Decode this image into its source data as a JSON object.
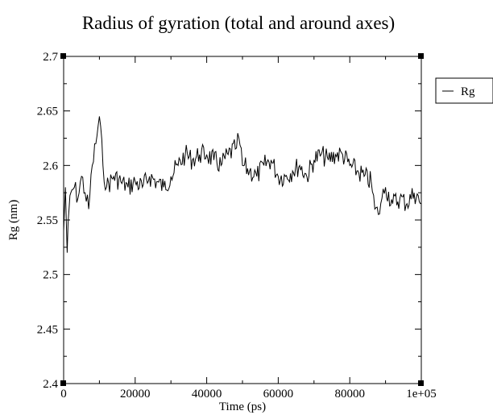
{
  "chart_data": {
    "type": "line",
    "title": "Radius of gyration (total and around axes)",
    "xlabel": "Time (ps)",
    "ylabel": "Rg (nm)",
    "xlim": [
      0,
      100000
    ],
    "ylim": [
      2.4,
      2.7
    ],
    "x_ticks": [
      {
        "value": 0,
        "label": "0"
      },
      {
        "value": 20000,
        "label": "20000"
      },
      {
        "value": 40000,
        "label": "40000"
      },
      {
        "value": 60000,
        "label": "60000"
      },
      {
        "value": 80000,
        "label": "80000"
      },
      {
        "value": 100000,
        "label": "1e+05"
      }
    ],
    "y_ticks": [
      {
        "value": 2.4,
        "label": "2.4"
      },
      {
        "value": 2.45,
        "label": "2.45"
      },
      {
        "value": 2.5,
        "label": "2.5"
      },
      {
        "value": 2.55,
        "label": "2.55"
      },
      {
        "value": 2.6,
        "label": "2.6"
      },
      {
        "value": 2.65,
        "label": "2.65"
      },
      {
        "value": 2.7,
        "label": "2.7"
      }
    ],
    "grid": false,
    "legend_position": "outside-right-top",
    "series": [
      {
        "name": "Rg",
        "color": "#000000",
        "x": [
          0,
          500,
          1000,
          1500,
          2000,
          3000,
          4000,
          5000,
          6000,
          7000,
          8000,
          9000,
          10000,
          11000,
          12000,
          14000,
          16000,
          18000,
          20000,
          22000,
          24000,
          26000,
          28000,
          30000,
          32000,
          34000,
          36000,
          38000,
          40000,
          42000,
          44000,
          46000,
          48000,
          49000,
          50000,
          52000,
          54000,
          56000,
          58000,
          60000,
          62000,
          64000,
          66000,
          68000,
          70000,
          72000,
          74000,
          76000,
          78000,
          80000,
          82000,
          84000,
          86000,
          87000,
          88000,
          89000,
          90000,
          92000,
          94000,
          96000,
          98000,
          100000
        ],
        "y": [
          2.54,
          2.58,
          2.52,
          2.56,
          2.575,
          2.58,
          2.57,
          2.59,
          2.575,
          2.56,
          2.6,
          2.62,
          2.645,
          2.6,
          2.58,
          2.59,
          2.585,
          2.58,
          2.585,
          2.58,
          2.59,
          2.585,
          2.58,
          2.59,
          2.6,
          2.61,
          2.605,
          2.61,
          2.61,
          2.605,
          2.6,
          2.61,
          2.615,
          2.625,
          2.6,
          2.595,
          2.59,
          2.6,
          2.605,
          2.59,
          2.59,
          2.595,
          2.6,
          2.59,
          2.605,
          2.61,
          2.605,
          2.61,
          2.61,
          2.6,
          2.595,
          2.59,
          2.585,
          2.56,
          2.555,
          2.57,
          2.58,
          2.565,
          2.57,
          2.565,
          2.575,
          2.565
        ]
      }
    ]
  }
}
